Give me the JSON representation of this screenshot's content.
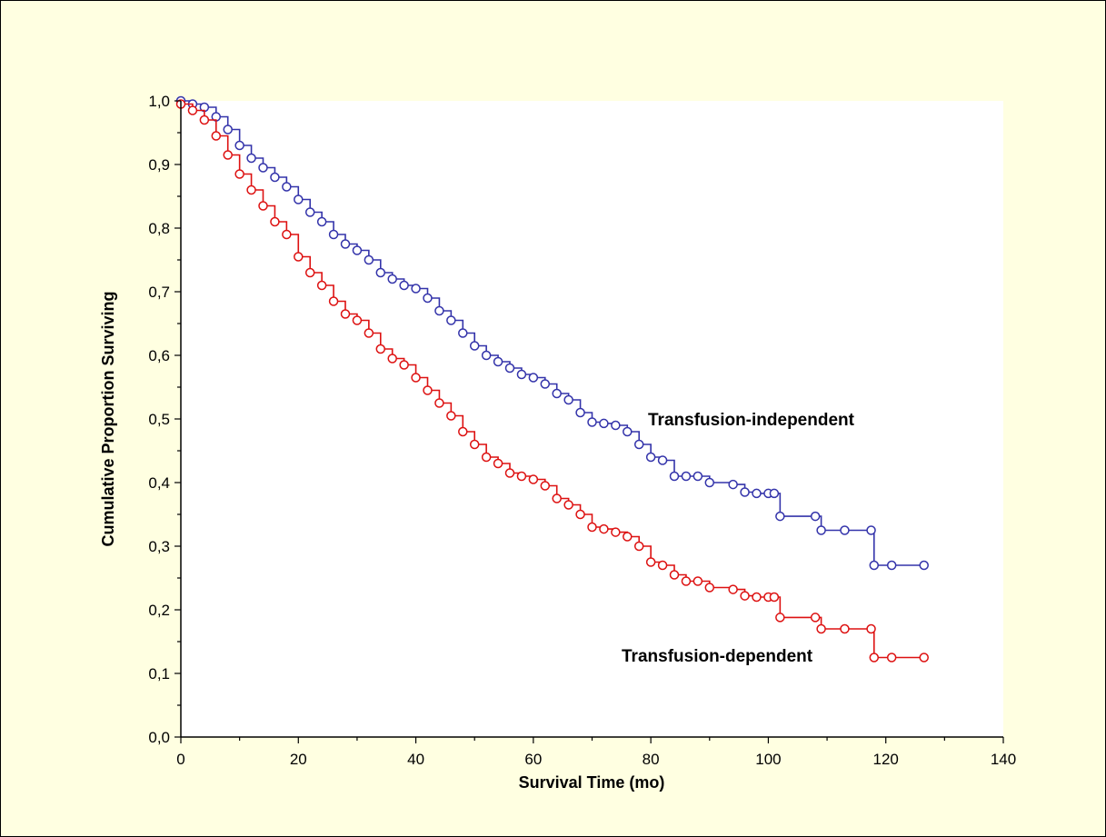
{
  "chart_data": {
    "type": "line",
    "title": "",
    "xlabel": "Survival Time (mo)",
    "ylabel": "Cumulative Proportion Surviving",
    "xlim": [
      0,
      140
    ],
    "ylim": [
      0,
      1
    ],
    "xticks": [
      "0",
      "20",
      "40",
      "60",
      "80",
      "100",
      "120",
      "140"
    ],
    "yticks": [
      "0,0",
      "0,1",
      "0,2",
      "0,3",
      "0,4",
      "0,5",
      "0,6",
      "0,7",
      "0,8",
      "0,9",
      "1,0"
    ],
    "grid": false,
    "legend": "inline labels",
    "series": [
      {
        "name": "Transfusion-independent",
        "color": "#3333aa",
        "points": [
          [
            0,
            1.0
          ],
          [
            2,
            0.995
          ],
          [
            4,
            0.99
          ],
          [
            6,
            0.975
          ],
          [
            8,
            0.955
          ],
          [
            10,
            0.93
          ],
          [
            12,
            0.91
          ],
          [
            14,
            0.895
          ],
          [
            16,
            0.88
          ],
          [
            18,
            0.865
          ],
          [
            20,
            0.845
          ],
          [
            22,
            0.825
          ],
          [
            24,
            0.81
          ],
          [
            26,
            0.79
          ],
          [
            28,
            0.775
          ],
          [
            30,
            0.765
          ],
          [
            32,
            0.75
          ],
          [
            34,
            0.73
          ],
          [
            36,
            0.72
          ],
          [
            38,
            0.71
          ],
          [
            40,
            0.705
          ],
          [
            42,
            0.69
          ],
          [
            44,
            0.67
          ],
          [
            46,
            0.655
          ],
          [
            48,
            0.635
          ],
          [
            50,
            0.615
          ],
          [
            52,
            0.6
          ],
          [
            54,
            0.59
          ],
          [
            56,
            0.58
          ],
          [
            58,
            0.57
          ],
          [
            60,
            0.565
          ],
          [
            62,
            0.555
          ],
          [
            64,
            0.54
          ],
          [
            66,
            0.53
          ],
          [
            68,
            0.51
          ],
          [
            70,
            0.495
          ],
          [
            72,
            0.493
          ],
          [
            74,
            0.49
          ],
          [
            76,
            0.48
          ],
          [
            78,
            0.46
          ],
          [
            80,
            0.44
          ],
          [
            82,
            0.435
          ],
          [
            84,
            0.41
          ],
          [
            86,
            0.41
          ],
          [
            88,
            0.41
          ],
          [
            90,
            0.4
          ],
          [
            94,
            0.397
          ],
          [
            96,
            0.385
          ],
          [
            98,
            0.383
          ],
          [
            100,
            0.383
          ],
          [
            101,
            0.383
          ],
          [
            102,
            0.347
          ],
          [
            108,
            0.347
          ],
          [
            109,
            0.325
          ],
          [
            113,
            0.325
          ],
          [
            117.5,
            0.325
          ],
          [
            118,
            0.27
          ],
          [
            121,
            0.27
          ],
          [
            126.5,
            0.27
          ]
        ]
      },
      {
        "name": "Transfusion-dependent",
        "color": "#dd1111",
        "points": [
          [
            0,
            0.995
          ],
          [
            2,
            0.985
          ],
          [
            4,
            0.97
          ],
          [
            6,
            0.945
          ],
          [
            8,
            0.915
          ],
          [
            10,
            0.885
          ],
          [
            12,
            0.86
          ],
          [
            14,
            0.835
          ],
          [
            16,
            0.81
          ],
          [
            18,
            0.79
          ],
          [
            20,
            0.755
          ],
          [
            22,
            0.73
          ],
          [
            24,
            0.71
          ],
          [
            26,
            0.685
          ],
          [
            28,
            0.665
          ],
          [
            30,
            0.655
          ],
          [
            32,
            0.635
          ],
          [
            34,
            0.61
          ],
          [
            36,
            0.595
          ],
          [
            38,
            0.585
          ],
          [
            40,
            0.565
          ],
          [
            42,
            0.545
          ],
          [
            44,
            0.525
          ],
          [
            46,
            0.505
          ],
          [
            48,
            0.48
          ],
          [
            50,
            0.46
          ],
          [
            52,
            0.44
          ],
          [
            54,
            0.43
          ],
          [
            56,
            0.415
          ],
          [
            58,
            0.41
          ],
          [
            60,
            0.405
          ],
          [
            62,
            0.395
          ],
          [
            64,
            0.375
          ],
          [
            66,
            0.365
          ],
          [
            68,
            0.35
          ],
          [
            70,
            0.33
          ],
          [
            72,
            0.327
          ],
          [
            74,
            0.322
          ],
          [
            76,
            0.315
          ],
          [
            78,
            0.3
          ],
          [
            80,
            0.275
          ],
          [
            82,
            0.27
          ],
          [
            84,
            0.255
          ],
          [
            86,
            0.245
          ],
          [
            88,
            0.245
          ],
          [
            90,
            0.235
          ],
          [
            94,
            0.232
          ],
          [
            96,
            0.222
          ],
          [
            98,
            0.22
          ],
          [
            100,
            0.22
          ],
          [
            101,
            0.22
          ],
          [
            102,
            0.188
          ],
          [
            108,
            0.188
          ],
          [
            109,
            0.17
          ],
          [
            113,
            0.17
          ],
          [
            117.5,
            0.17
          ],
          [
            118,
            0.125
          ],
          [
            121,
            0.125
          ],
          [
            126.5,
            0.125
          ]
        ]
      }
    ]
  }
}
